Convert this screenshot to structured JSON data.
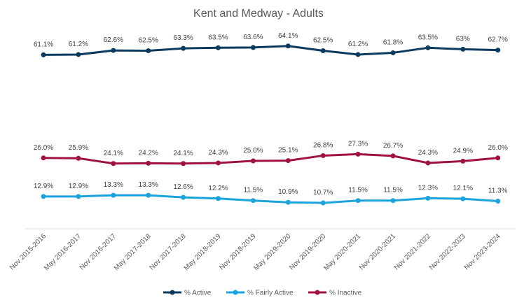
{
  "chart_data": {
    "type": "line",
    "title": "Kent and Medway - Adults",
    "xlabel": "",
    "ylabel": "",
    "categories": [
      "Nov 2015-2016",
      "May 2016-2017",
      "Nov 2016-2017",
      "May 2017-2018",
      "Nov 2017-2018",
      "May 2018-2019",
      "Nov 2018-2019",
      "May 2019-2020",
      "Nov 2019-2020",
      "May 2020-2021",
      "Nov 2020-2021",
      "Nov 2021-2022",
      "Nov 2022-2023",
      "Nov 2023-2024"
    ],
    "ylim": [
      0,
      70
    ],
    "grid": false,
    "legend": "bottom",
    "series": [
      {
        "name": "% Active",
        "color": "#0b3a5f",
        "values": [
          61.1,
          61.2,
          62.6,
          62.5,
          63.3,
          63.5,
          63.6,
          64.1,
          62.5,
          61.2,
          61.8,
          63.5,
          63.0,
          62.7
        ],
        "labels": [
          "61.1%",
          "61.2%",
          "62.6%",
          "62.5%",
          "63.3%",
          "63.5%",
          "63.6%",
          "64.1%",
          "62.5%",
          "61.2%",
          "61.8%",
          "63.5%",
          "63%",
          "62.7%"
        ]
      },
      {
        "name": "% Fairly Active",
        "color": "#1aa3dc",
        "values": [
          12.9,
          12.9,
          13.3,
          13.3,
          12.6,
          12.2,
          11.5,
          10.9,
          10.7,
          11.5,
          11.5,
          12.3,
          12.1,
          11.3
        ],
        "labels": [
          "12.9%",
          "12.9%",
          "13.3%",
          "13.3%",
          "12.6%",
          "12.2%",
          "11.5%",
          "10.9%",
          "10.7%",
          "11.5%",
          "11.5%",
          "12.3%",
          "12.1%",
          "11.3%"
        ]
      },
      {
        "name": "% Inactive",
        "color": "#a0123f",
        "values": [
          26.0,
          25.9,
          24.1,
          24.2,
          24.1,
          24.3,
          25.0,
          25.1,
          26.8,
          27.3,
          26.7,
          24.3,
          24.9,
          26.0
        ],
        "labels": [
          "26.0%",
          "25.9%",
          "24.1%",
          "24.2%",
          "24.1%",
          "24.3%",
          "25.0%",
          "25.1%",
          "26.8%",
          "27.3%",
          "26.7%",
          "24.3%",
          "24.9%",
          "26.0%"
        ]
      }
    ]
  }
}
